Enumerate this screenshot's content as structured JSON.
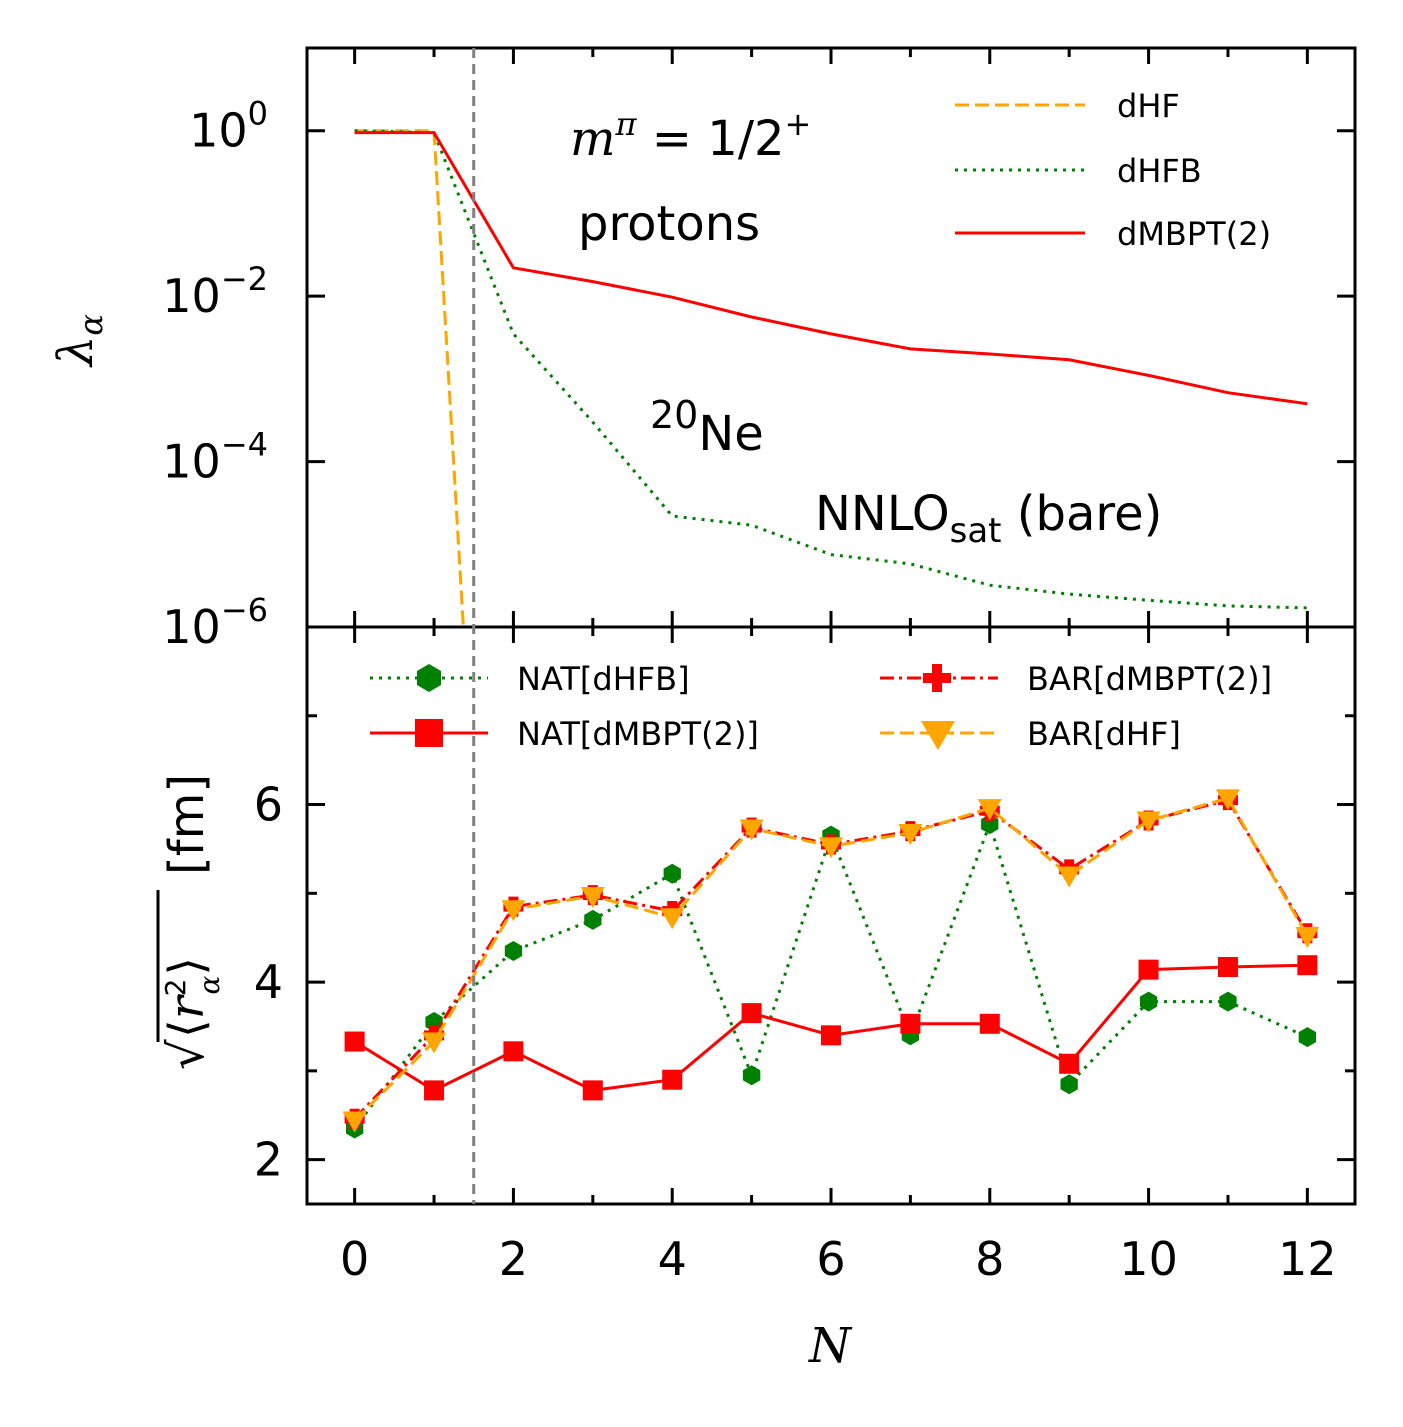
{
  "chart_data": [
    {
      "type": "line",
      "panel": "top",
      "yscale": "log",
      "ylabel": "λ_α",
      "ylim": [
        1e-06,
        10
      ],
      "xlim": [
        -0.6,
        12.6
      ],
      "yticks": [
        {
          "value": 1,
          "base": "10",
          "exp": "0"
        },
        {
          "value": 0.01,
          "base": "10",
          "exp": "−2"
        },
        {
          "value": 0.0001,
          "base": "10",
          "exp": "−4"
        },
        {
          "value": 1e-06,
          "base": "10",
          "exp": "−6"
        }
      ],
      "annotations": {
        "quantum_numbers": "m^π = 1/2^+",
        "q_m": "m",
        "q_pi": "π",
        "q_eq": " = 1/2",
        "q_plus": "+",
        "particle": "protons",
        "nucleus_mass": "20",
        "nucleus": "Ne",
        "interaction": "NNLO",
        "interaction_sub": "sat",
        "interaction_tail": " (bare)"
      },
      "series": [
        {
          "name": "dHF",
          "color": "#FFA500",
          "style": "dashed",
          "x": [
            0,
            1,
            1.37
          ],
          "y": [
            1,
            1,
            1e-06
          ]
        },
        {
          "name": "dHFB",
          "color": "#008000",
          "style": "dotted",
          "x": [
            0,
            1,
            2,
            3,
            4,
            5,
            6,
            7,
            8,
            9,
            10,
            11,
            12
          ],
          "y": [
            1,
            0.95,
            0.0035,
            0.0003,
            2.2e-05,
            1.7e-05,
            7.5e-06,
            5.8e-06,
            3.2e-06,
            2.5e-06,
            2.1e-06,
            1.8e-06,
            1.7e-06
          ]
        },
        {
          "name": "dMBPT(2)",
          "color": "#FF0000",
          "style": "solid",
          "x": [
            0,
            1,
            2,
            3,
            4,
            5,
            6,
            7,
            8,
            9,
            10,
            11,
            12
          ],
          "y": [
            0.95,
            0.95,
            0.022,
            0.015,
            0.0097,
            0.0056,
            0.0035,
            0.0023,
            0.002,
            0.0017,
            0.0011,
            0.00068,
            0.0005
          ]
        }
      ]
    },
    {
      "type": "line",
      "panel": "bottom",
      "xlabel": "N",
      "ylabel": "sqrt(<r_α^2>) [fm]",
      "ylabel_unit": "[fm]",
      "ylim": [
        1.5,
        8
      ],
      "xlim": [
        -0.6,
        12.6
      ],
      "xticks": [
        0,
        2,
        4,
        6,
        8,
        10,
        12
      ],
      "yticks": [
        2,
        4,
        6
      ],
      "series": [
        {
          "name": "NAT[dHFB]",
          "color": "#008000",
          "style": "dotted",
          "marker": "hexagon",
          "x": [
            0,
            1,
            2,
            3,
            4,
            5,
            6,
            7,
            8,
            9,
            10,
            11,
            12
          ],
          "y": [
            2.35,
            3.55,
            4.35,
            4.7,
            5.22,
            2.95,
            5.65,
            3.4,
            5.78,
            2.85,
            3.78,
            3.78,
            3.38
          ]
        },
        {
          "name": "NAT[dMBPT(2)]",
          "color": "#FF0000",
          "style": "solid",
          "marker": "square",
          "x": [
            0,
            1,
            2,
            3,
            4,
            5,
            6,
            7,
            8,
            9,
            10,
            11,
            12
          ],
          "y": [
            3.33,
            2.78,
            3.22,
            2.78,
            2.9,
            3.65,
            3.4,
            3.53,
            3.53,
            3.08,
            4.14,
            4.17,
            4.19
          ]
        },
        {
          "name": "BAR[dMBPT(2)]",
          "color": "#FF0000",
          "style": "dashdot",
          "marker": "plus",
          "x": [
            0,
            1,
            2,
            3,
            4,
            5,
            6,
            7,
            8,
            9,
            10,
            11,
            12
          ],
          "y": [
            2.46,
            3.4,
            4.85,
            4.98,
            4.8,
            5.74,
            5.55,
            5.7,
            5.93,
            5.27,
            5.82,
            6.05,
            4.55
          ]
        },
        {
          "name": "BAR[dHF]",
          "color": "#FFA500",
          "style": "dashed",
          "marker": "triangle-down",
          "x": [
            0,
            1,
            2,
            3,
            4,
            5,
            6,
            7,
            8,
            9,
            10,
            11,
            12
          ],
          "y": [
            2.44,
            3.33,
            4.82,
            4.97,
            4.73,
            5.73,
            5.53,
            5.68,
            5.96,
            5.2,
            5.82,
            6.07,
            4.52
          ]
        }
      ]
    }
  ],
  "shared": {
    "vline_x": 1.5,
    "vline_color": "#808080"
  }
}
